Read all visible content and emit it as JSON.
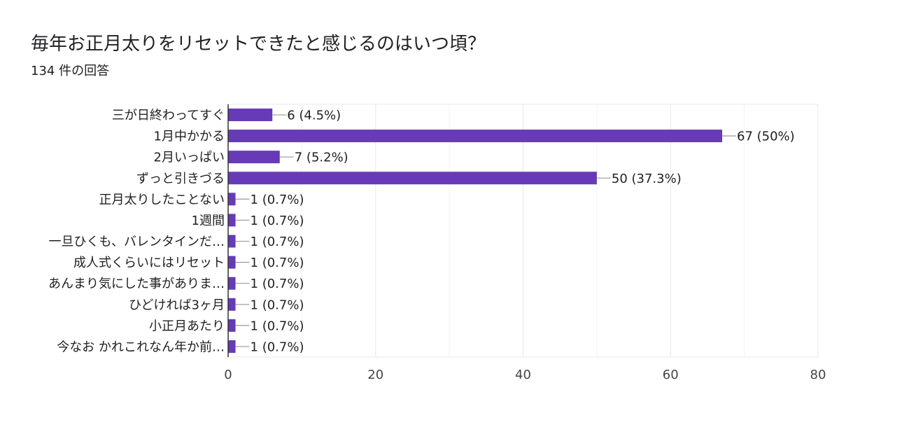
{
  "question": {
    "title": "毎年お正月太りをリセットできたと感じるのはいつ頃？",
    "response_count": "134 件の回答"
  },
  "colors": {
    "bar": "#673ab7",
    "grid": "#e8e8e8",
    "axis": "#333333",
    "text": "#202124",
    "tick_text": "#444444"
  },
  "chart_data": {
    "type": "bar",
    "orientation": "horizontal",
    "categories": [
      "三が日終わってすぐ",
      "1月中かかる",
      "2月いっぱい",
      "ずっと引きづる",
      "正月太りしたことない",
      "1週間",
      "一旦ひくも、バレンタインだ…",
      "成人式くらいにはリセット",
      "あんまり気にした事がありま…",
      "ひどければ3ヶ月",
      "小正月あたり",
      "今なお かれこれなん年か前…"
    ],
    "values": [
      6,
      67,
      7,
      50,
      1,
      1,
      1,
      1,
      1,
      1,
      1,
      1
    ],
    "data_labels": [
      "6 (4.5%)",
      "67 (50%)",
      "7 (5.2%)",
      "50 (37.3%)",
      "1 (0.7%)",
      "1 (0.7%)",
      "1 (0.7%)",
      "1 (0.7%)",
      "1 (0.7%)",
      "1 (0.7%)",
      "1 (0.7%)",
      "1 (0.7%)"
    ],
    "xlim": [
      0,
      80
    ],
    "xticks": [
      0,
      20,
      40,
      60,
      80
    ],
    "xtick_labels": [
      "0",
      "20",
      "40",
      "60",
      "80"
    ],
    "grid": true,
    "legend": false
  }
}
